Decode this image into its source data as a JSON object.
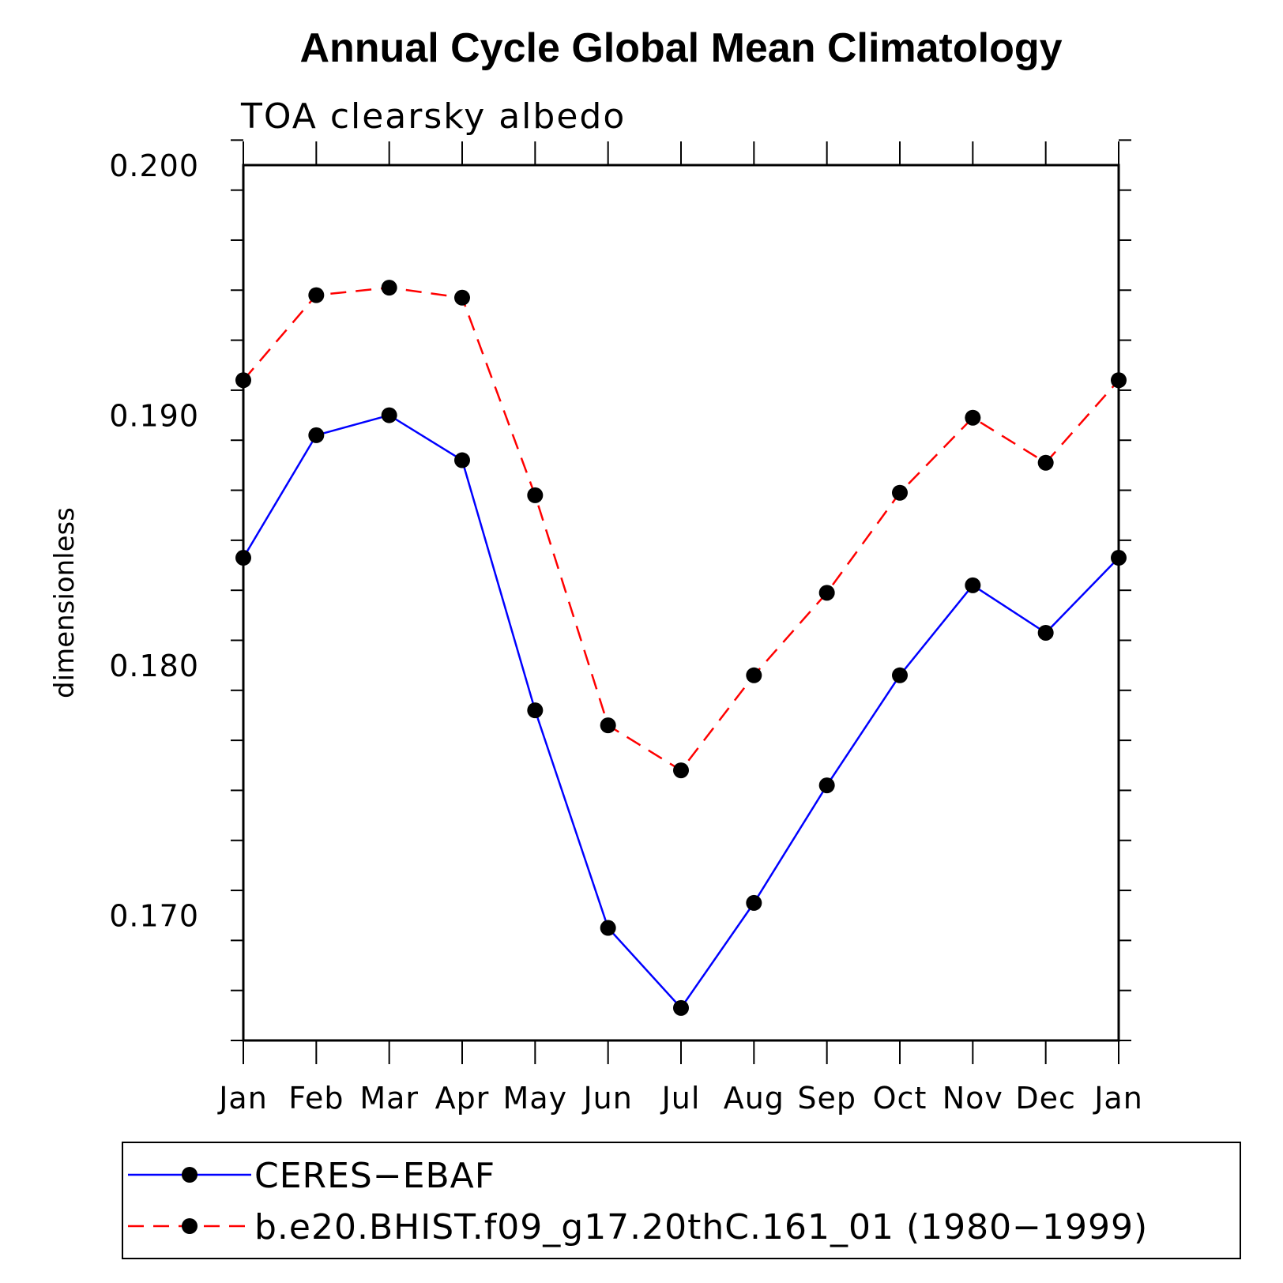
{
  "chart_data": {
    "type": "line",
    "title": "Annual Cycle Global Mean Climatology",
    "subtitle": "TOA clearsky albedo",
    "xlabel": "",
    "ylabel": "dimensionless",
    "categories": [
      "Jan",
      "Feb",
      "Mar",
      "Apr",
      "May",
      "Jun",
      "Jul",
      "Aug",
      "Sep",
      "Oct",
      "Nov",
      "Dec",
      "Jan"
    ],
    "ylim": [
      0.165,
      0.2
    ],
    "yticks": [
      "0.170",
      "0.180",
      "0.190",
      "0.200"
    ],
    "ytick_values": [
      0.17,
      0.18,
      0.19,
      0.2
    ],
    "series": [
      {
        "name": "CERES-EBAF",
        "color": "#0000ff",
        "linestyle": "solid",
        "marker": "circle",
        "values": [
          0.1843,
          0.1892,
          0.19,
          0.1882,
          0.1782,
          0.1695,
          0.1663,
          0.1705,
          0.1752,
          0.1796,
          0.1832,
          0.1813,
          0.1843
        ]
      },
      {
        "name": "b.e20.BHIST.f09_g17.20thC.161_01 (1980−1999)",
        "color": "#ff0000",
        "linestyle": "dashed",
        "marker": "circle",
        "values": [
          0.1914,
          0.1948,
          0.1951,
          0.1947,
          0.1868,
          0.1776,
          0.1758,
          0.1796,
          0.1829,
          0.1869,
          0.1899,
          0.1881,
          0.1914
        ]
      }
    ],
    "legend_labels": [
      "CERES−EBAF",
      "b.e20.BHIST.f09_g17.20thC.161_01 (1980−1999)"
    ]
  }
}
